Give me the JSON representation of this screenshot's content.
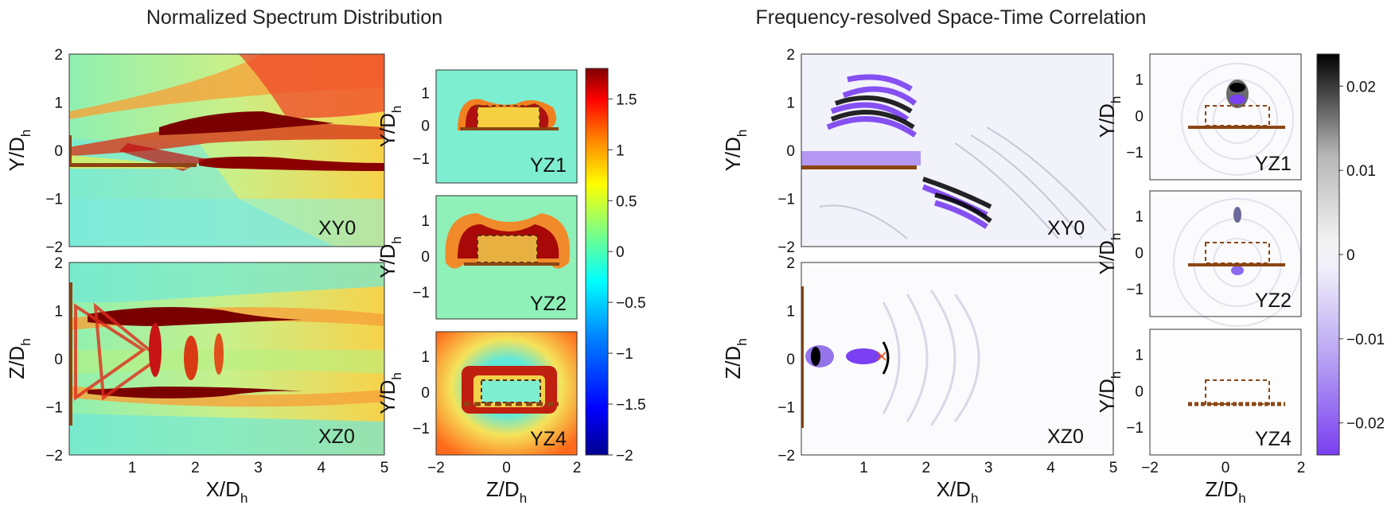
{
  "colors": {
    "jet": [
      "#00008f",
      "#0000ff",
      "#0080ff",
      "#00ffff",
      "#80ff80",
      "#ffff00",
      "#ff8000",
      "#ff0000",
      "#800000"
    ],
    "correlation": [
      "#7a3ff0",
      "#a98cf2",
      "#d5cdf6",
      "#f6f6fb",
      "#c9c9c9",
      "#707070",
      "#000000"
    ],
    "plate": "#8b4513"
  },
  "chart_data": [
    {
      "type": "heatmap",
      "title": "Normalized Spectrum Distribution",
      "colorbar": {
        "range": [
          -2,
          1.8
        ],
        "ticks": [
          "1.5",
          "1",
          "0.5",
          "0",
          "−0.5",
          "−1",
          "−1.5",
          "−2"
        ],
        "colormap": "jet"
      },
      "panels": [
        {
          "label": "XY0",
          "xlim": [
            0,
            5
          ],
          "ylim": [
            -2,
            2
          ],
          "xticks": [],
          "yticks": [
            "2",
            "1",
            "0",
            "−1",
            "−2"
          ],
          "xlabel": "",
          "ylabel_main": "Y/D",
          "ylabel_sub": "h"
        },
        {
          "label": "XZ0",
          "xlim": [
            0,
            5
          ],
          "ylim": [
            -2,
            2
          ],
          "xticks": [
            "1",
            "2",
            "3",
            "4",
            "5"
          ],
          "yticks": [
            "2",
            "1",
            "0",
            "−1",
            "−2"
          ],
          "xlabel_main": "X/D",
          "xlabel_sub": "h",
          "ylabel_main": "Z/D",
          "ylabel_sub": "h"
        },
        {
          "label": "YZ1",
          "xlim": [
            -2,
            2
          ],
          "ylim": [
            -2,
            1.5
          ],
          "yticks": [
            "1",
            "0",
            "−1"
          ],
          "ylabel_main": "Y/D",
          "ylabel_sub": "h"
        },
        {
          "label": "YZ2",
          "xlim": [
            -2,
            2
          ],
          "ylim": [
            -2,
            1.5
          ],
          "yticks": [
            "1",
            "0",
            "−1"
          ],
          "ylabel_main": "Y/D",
          "ylabel_sub": "h"
        },
        {
          "label": "YZ4",
          "xlim": [
            -2,
            2
          ],
          "ylim": [
            -2,
            1.5
          ],
          "xticks": [
            "−2",
            "0",
            "2"
          ],
          "yticks": [
            "1",
            "0",
            "−1"
          ],
          "xlabel_main": "Z/D",
          "xlabel_sub": "h",
          "ylabel_main": "Y/D",
          "ylabel_sub": "h"
        }
      ]
    },
    {
      "type": "heatmap",
      "title": "Frequency-resolved Space-Time Correlation",
      "colorbar": {
        "range": [
          -0.026,
          0.026
        ],
        "ticks": [
          "0.02",
          "0.01",
          "0",
          "−0.01",
          "−0.02"
        ],
        "colormap": "correlation"
      },
      "panels": [
        {
          "label": "XY0",
          "xlim": [
            0,
            5
          ],
          "ylim": [
            -2,
            2
          ],
          "xticks": [],
          "yticks": [
            "2",
            "1",
            "0",
            "−1",
            "−2"
          ],
          "ylabel_main": "Y/D",
          "ylabel_sub": "h"
        },
        {
          "label": "XZ0",
          "xlim": [
            0,
            5
          ],
          "ylim": [
            -2,
            2
          ],
          "xticks": [
            "1",
            "2",
            "3",
            "4",
            "5"
          ],
          "yticks": [
            "2",
            "1",
            "0",
            "−1",
            "−2"
          ],
          "xlabel_main": "X/D",
          "xlabel_sub": "h",
          "ylabel_main": "Z/D",
          "ylabel_sub": "h"
        },
        {
          "label": "YZ1",
          "xlim": [
            -2,
            2
          ],
          "ylim": [
            -2,
            2
          ],
          "yticks": [
            "1",
            "0",
            "−1"
          ],
          "ylabel_main": "Y/D",
          "ylabel_sub": "h"
        },
        {
          "label": "YZ2",
          "xlim": [
            -2,
            2
          ],
          "ylim": [
            -2,
            2
          ],
          "yticks": [
            "1",
            "0",
            "−1"
          ],
          "ylabel_main": "Y/D",
          "ylabel_sub": "h"
        },
        {
          "label": "YZ4",
          "xlim": [
            -2,
            2
          ],
          "ylim": [
            -2,
            2
          ],
          "xticks": [
            "−2",
            "0",
            "2"
          ],
          "yticks": [
            "1",
            "0",
            "−1"
          ],
          "xlabel_main": "Z/D",
          "xlabel_sub": "h",
          "ylabel_main": "Y/D",
          "ylabel_sub": "h"
        }
      ],
      "markers": [
        {
          "symbol": "×"
        }
      ]
    }
  ]
}
